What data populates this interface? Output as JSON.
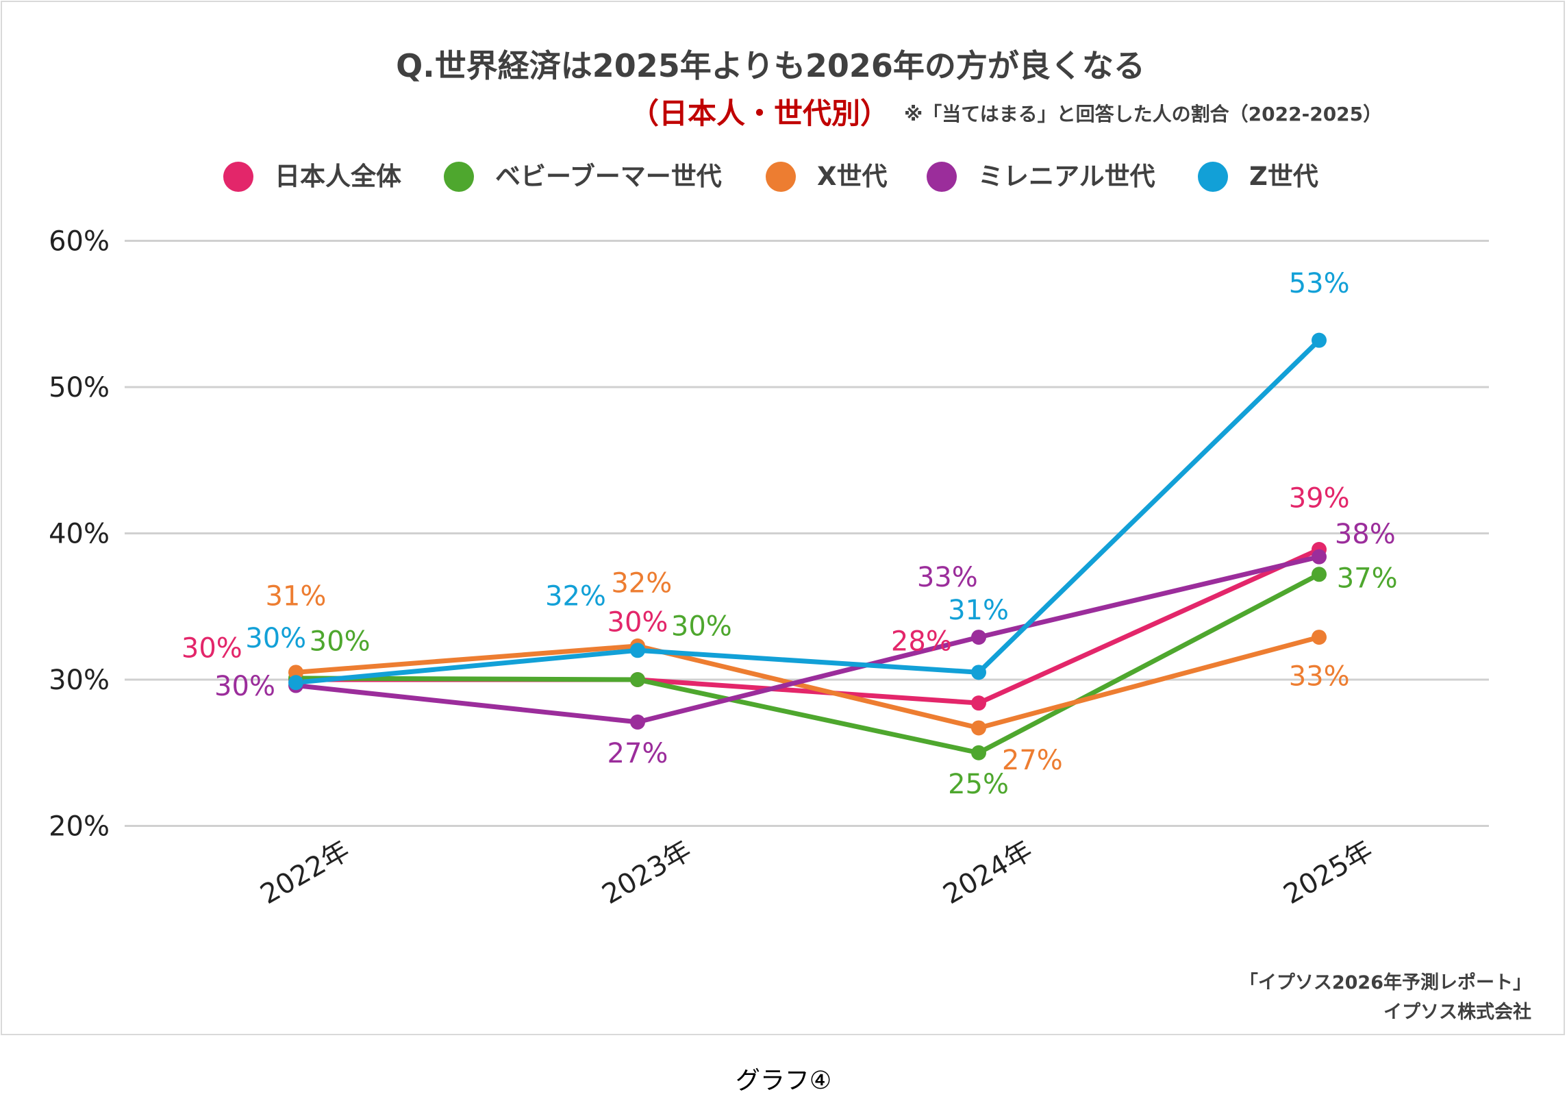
{
  "chart_data": {
    "type": "line",
    "title": "Q.世界経済は2025年よりも2026年の方が良くなる",
    "subtitle_red": "（日本人・世代別）",
    "subtitle_note": "※「当てはまる」と回答した人の割合（2022-2025）",
    "categories": [
      "2022年",
      "2023年",
      "2024年",
      "2025年"
    ],
    "y_ticks": [
      "20%",
      "30%",
      "40%",
      "50%",
      "60%"
    ],
    "ylim": [
      20,
      60
    ],
    "grid": true,
    "legend_position": "top",
    "series": [
      {
        "name": "日本人全体",
        "color": "#E3266A",
        "values": [
          30,
          30,
          28.4,
          38.9
        ],
        "labels": [
          "30%",
          "30%",
          "28%",
          "39%"
        ]
      },
      {
        "name": "ベビーブーマー世代",
        "color": "#4EA72E",
        "values": [
          30.1,
          30,
          25,
          37.2
        ],
        "labels": [
          "30%",
          "30%",
          "25%",
          "37%"
        ]
      },
      {
        "name": "X世代",
        "color": "#ED7D31",
        "values": [
          30.5,
          32.3,
          26.7,
          32.9
        ],
        "labels": [
          "31%",
          "32%",
          "27%",
          "33%"
        ]
      },
      {
        "name": "ミレニアル世代",
        "color": "#9B2D9B",
        "values": [
          29.6,
          27.1,
          32.9,
          38.4
        ],
        "labels": [
          "30%",
          "27%",
          "33%",
          "38%"
        ]
      },
      {
        "name": "Z世代",
        "color": "#12A0D7",
        "values": [
          29.8,
          32,
          30.5,
          53.2
        ],
        "labels": [
          "30%",
          "32%",
          "31%",
          "53%"
        ]
      }
    ],
    "source_line1": "「イプソス2026年予測レポート」",
    "source_line2": "イプソス株式会社"
  },
  "caption": "グラフ④",
  "colors": {
    "title": "#404040",
    "subtitle_red": "#C00000",
    "grid": "#d0d0d0"
  }
}
